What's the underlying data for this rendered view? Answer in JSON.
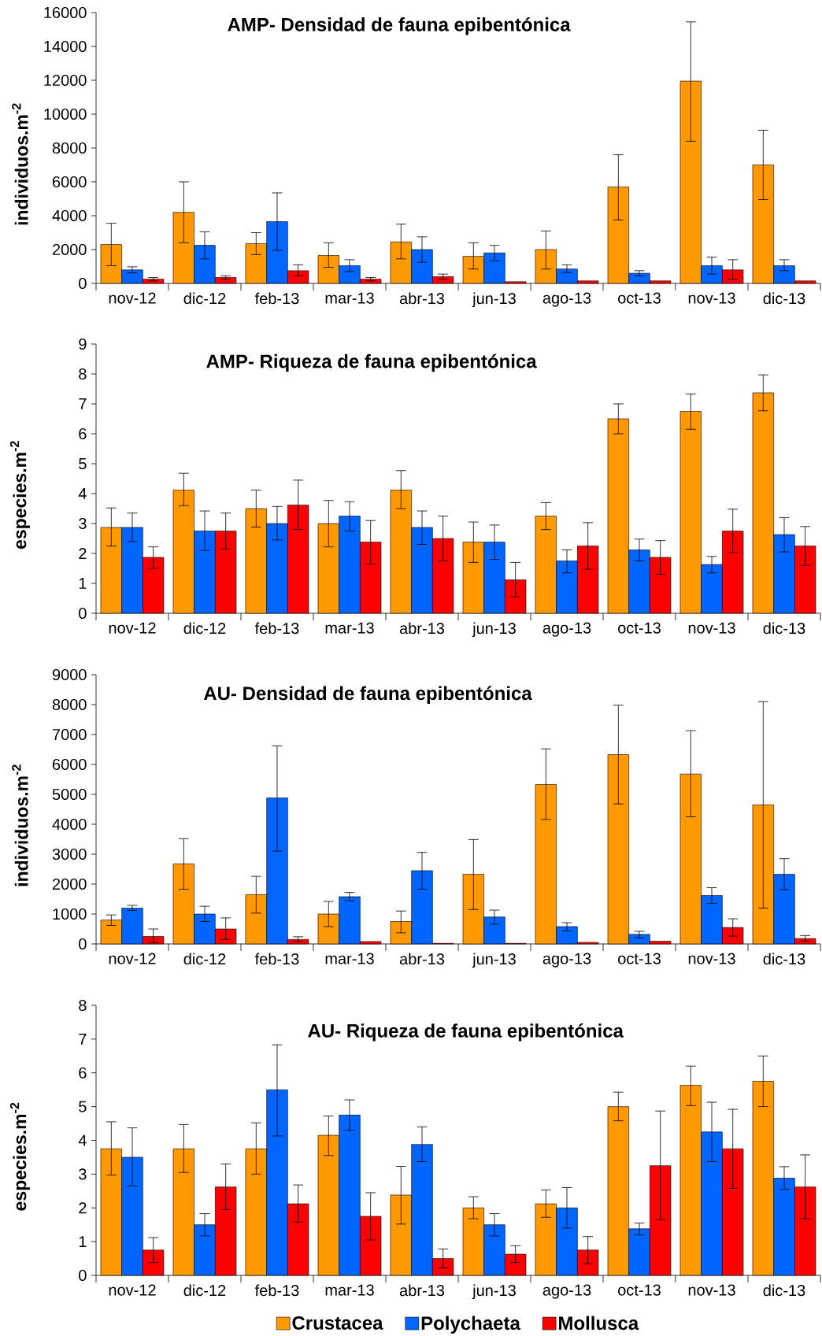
{
  "chart_data": [
    {
      "type": "bar",
      "title": "AMP- Densidad de fauna epibentónica",
      "ylabel": "individuos.m$^{-2}$",
      "categories": [
        "nov-12",
        "dic-12",
        "feb-13",
        "mar-13",
        "abr-13",
        "jun-13",
        "ago-13",
        "oct-13",
        "nov-13",
        "dic-13"
      ],
      "ylim": [
        0,
        16000
      ],
      "yticks": [
        0,
        2000,
        4000,
        6000,
        8000,
        10000,
        12000,
        14000,
        16000
      ],
      "series": [
        {
          "color": "#ff9900",
          "values": [
            2300,
            4200,
            2350,
            1650,
            2450,
            1600,
            2000,
            5700,
            11950,
            7000
          ],
          "errors": [
            [
              1050,
              3550
            ],
            [
              2400,
              6000
            ],
            [
              1700,
              3000
            ],
            [
              950,
              2400
            ],
            [
              1450,
              3500
            ],
            [
              850,
              2400
            ],
            [
              850,
              3100
            ],
            [
              3750,
              7600
            ],
            [
              8400,
              15450
            ],
            [
              4950,
              9050
            ]
          ]
        },
        {
          "color": "#0066ff",
          "values": [
            800,
            2250,
            3650,
            1050,
            2000,
            1800,
            850,
            600,
            1050,
            1050
          ],
          "errors": [
            [
              620,
              980
            ],
            [
              1450,
              3050
            ],
            [
              1950,
              5350
            ],
            [
              700,
              1400
            ],
            [
              1250,
              2750
            ],
            [
              1350,
              2250
            ],
            [
              650,
              1100
            ],
            [
              450,
              750
            ],
            [
              550,
              1550
            ],
            [
              750,
              1400
            ]
          ]
        },
        {
          "color": "#ff0000",
          "values": [
            250,
            350,
            750,
            250,
            400,
            100,
            150,
            150,
            800,
            150
          ],
          "errors": [
            [
              150,
              350
            ],
            [
              250,
              450
            ],
            [
              450,
              1100
            ],
            [
              150,
              350
            ],
            [
              250,
              550
            ],
            null,
            null,
            null,
            [
              250,
              1400
            ],
            null
          ]
        }
      ]
    },
    {
      "type": "bar",
      "title": "AMP- Riqueza de fauna epibentónica",
      "ylabel": "especies.m$^{-2}$",
      "categories": [
        "nov-12",
        "dic-12",
        "feb-13",
        "mar-13",
        "abr-13",
        "jun-13",
        "ago-13",
        "oct-13",
        "nov-13",
        "dic-13"
      ],
      "ylim": [
        0,
        9
      ],
      "yticks": [
        0,
        1,
        2,
        3,
        4,
        5,
        6,
        7,
        8,
        9
      ],
      "series": [
        {
          "color": "#ff9900",
          "values": [
            2.87,
            4.12,
            3.5,
            3.0,
            4.12,
            2.38,
            3.25,
            6.5,
            6.75,
            7.37
          ],
          "errors": [
            [
              2.25,
              3.52
            ],
            [
              3.6,
              4.68
            ],
            [
              2.88,
              4.12
            ],
            [
              2.22,
              3.77
            ],
            [
              3.5,
              4.77
            ],
            [
              1.7,
              3.05
            ],
            [
              2.8,
              3.7
            ],
            [
              6.0,
              7.0
            ],
            [
              6.15,
              7.33
            ],
            [
              6.77,
              7.97
            ]
          ]
        },
        {
          "color": "#0066ff",
          "values": [
            2.87,
            2.75,
            3.0,
            3.25,
            2.87,
            2.38,
            1.75,
            2.12,
            1.63,
            2.63
          ],
          "errors": [
            [
              2.4,
              3.35
            ],
            [
              2.1,
              3.42
            ],
            [
              2.45,
              3.57
            ],
            [
              2.75,
              3.73
            ],
            [
              2.3,
              3.42
            ],
            [
              1.8,
              2.95
            ],
            [
              1.35,
              2.12
            ],
            [
              1.75,
              2.48
            ],
            [
              1.35,
              1.9
            ],
            [
              2.05,
              3.2
            ]
          ]
        },
        {
          "color": "#ff0000",
          "values": [
            1.87,
            2.75,
            3.62,
            2.38,
            2.5,
            1.12,
            2.25,
            1.87,
            2.75,
            2.25
          ],
          "errors": [
            [
              1.5,
              2.22
            ],
            [
              2.15,
              3.35
            ],
            [
              2.8,
              4.45
            ],
            [
              1.65,
              3.1
            ],
            [
              1.75,
              3.25
            ],
            [
              0.55,
              1.7
            ],
            [
              1.47,
              3.03
            ],
            [
              1.3,
              2.43
            ],
            [
              2.03,
              3.48
            ],
            [
              1.6,
              2.9
            ]
          ]
        }
      ]
    },
    {
      "type": "bar",
      "title": "AU- Densidad de fauna epibentónica",
      "ylabel": "individuos.m$^{-2}$",
      "categories": [
        "nov-12",
        "dic-12",
        "feb-13",
        "mar-13",
        "abr-13",
        "jun-13",
        "ago-13",
        "oct-13",
        "nov-13",
        "dic-13"
      ],
      "ylim": [
        0,
        9000
      ],
      "yticks": [
        0,
        1000,
        2000,
        3000,
        4000,
        5000,
        6000,
        7000,
        8000,
        9000
      ],
      "series": [
        {
          "color": "#ff9900",
          "values": [
            800,
            2680,
            1650,
            1000,
            750,
            2330,
            5330,
            6330,
            5680,
            4650
          ],
          "errors": [
            [
              620,
              970
            ],
            [
              1830,
              3520
            ],
            [
              1030,
              2260
            ],
            [
              580,
              1420
            ],
            [
              370,
              1100
            ],
            [
              1150,
              3490
            ],
            [
              4160,
              6520
            ],
            [
              4680,
              7980
            ],
            [
              4250,
              7130
            ],
            [
              1200,
              8100
            ]
          ]
        },
        {
          "color": "#0066ff",
          "values": [
            1200,
            1000,
            4880,
            1580,
            2450,
            900,
            580,
            320,
            1620,
            2330
          ],
          "errors": [
            [
              1120,
              1290
            ],
            [
              750,
              1260
            ],
            [
              3100,
              6620
            ],
            [
              1440,
              1720
            ],
            [
              1830,
              3060
            ],
            [
              660,
              1130
            ],
            [
              440,
              710
            ],
            [
              210,
              420
            ],
            [
              1360,
              1880
            ],
            [
              1820,
              2850
            ]
          ]
        },
        {
          "color": "#ff0000",
          "values": [
            250,
            500,
            150,
            80,
            20,
            20,
            50,
            90,
            550,
            180
          ],
          "errors": [
            [
              50,
              500
            ],
            [
              150,
              870
            ],
            [
              80,
              240
            ],
            null,
            null,
            null,
            null,
            null,
            [
              260,
              840
            ],
            [
              100,
              280
            ]
          ]
        }
      ]
    },
    {
      "type": "bar",
      "title": "AU- Riqueza de fauna epibentónica",
      "ylabel": "especies.m$^{-2}$",
      "categories": [
        "nov-12",
        "dic-12",
        "feb-13",
        "mar-13",
        "abr-13",
        "jun-13",
        "ago-13",
        "oct-13",
        "nov-13",
        "dic-13"
      ],
      "ylim": [
        0,
        8
      ],
      "yticks": [
        0,
        1,
        2,
        3,
        4,
        5,
        6,
        7,
        8
      ],
      "legend": "bottom",
      "series": [
        {
          "name": "Crustacea",
          "color": "#ff9900",
          "values": [
            3.75,
            3.75,
            3.75,
            4.15,
            2.38,
            2.0,
            2.12,
            5.0,
            5.63,
            5.75
          ],
          "errors": [
            [
              2.97,
              4.55
            ],
            [
              3.05,
              4.47
            ],
            [
              3.0,
              4.52
            ],
            [
              3.55,
              4.72
            ],
            [
              1.52,
              3.23
            ],
            [
              1.68,
              2.33
            ],
            [
              1.72,
              2.53
            ],
            [
              4.58,
              5.43
            ],
            [
              5.03,
              6.2
            ],
            [
              5.0,
              6.5
            ]
          ]
        },
        {
          "name": "Polychaeta",
          "color": "#0066ff",
          "values": [
            3.5,
            1.5,
            5.5,
            4.75,
            3.88,
            1.5,
            2.0,
            1.38,
            4.25,
            2.88
          ],
          "errors": [
            [
              2.65,
              4.37
            ],
            [
              1.17,
              1.83
            ],
            [
              4.13,
              6.83
            ],
            [
              4.3,
              5.2
            ],
            [
              3.37,
              4.4
            ],
            [
              1.17,
              1.83
            ],
            [
              1.4,
              2.6
            ],
            [
              1.2,
              1.55
            ],
            [
              3.37,
              5.13
            ],
            [
              2.55,
              3.22
            ]
          ]
        },
        {
          "name": "Mollusca",
          "color": "#ff0000",
          "values": [
            0.75,
            2.62,
            2.12,
            1.75,
            0.5,
            0.63,
            0.75,
            3.25,
            3.75,
            2.62
          ],
          "errors": [
            [
              0.38,
              1.12
            ],
            [
              1.95,
              3.3
            ],
            [
              1.58,
              2.68
            ],
            [
              1.05,
              2.45
            ],
            [
              0.22,
              0.78
            ],
            [
              0.38,
              0.88
            ],
            [
              0.35,
              1.15
            ],
            [
              1.65,
              4.87
            ],
            [
              2.58,
              4.92
            ],
            [
              1.68,
              3.57
            ]
          ]
        }
      ]
    }
  ]
}
